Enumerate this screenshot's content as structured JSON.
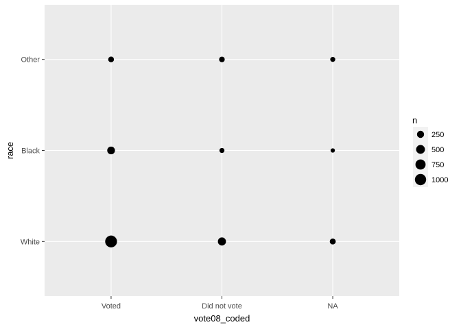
{
  "chart_data": {
    "type": "scatter",
    "xlabel": "vote08_coded",
    "ylabel": "race",
    "x_categories": [
      "Voted",
      "Did not vote",
      "NA"
    ],
    "y_categories": [
      "White",
      "Black",
      "Other"
    ],
    "points": [
      {
        "x": "Voted",
        "y": "White",
        "n": 1150
      },
      {
        "x": "Did not vote",
        "y": "White",
        "n": 380
      },
      {
        "x": "NA",
        "y": "White",
        "n": 130
      },
      {
        "x": "Voted",
        "y": "Black",
        "n": 330
      },
      {
        "x": "Did not vote",
        "y": "Black",
        "n": 60
      },
      {
        "x": "NA",
        "y": "Black",
        "n": 25
      },
      {
        "x": "Voted",
        "y": "Other",
        "n": 110
      },
      {
        "x": "Did not vote",
        "y": "Other",
        "n": 100
      },
      {
        "x": "NA",
        "y": "Other",
        "n": 60
      }
    ],
    "legend": {
      "title": "n",
      "breaks": [
        250,
        500,
        750,
        1000
      ],
      "labels": [
        "250",
        "500",
        "750",
        "1000"
      ],
      "position": "right"
    },
    "grid": true,
    "colors": {
      "panel": "#ebebeb",
      "grid": "#ffffff",
      "point": "#000000"
    }
  }
}
